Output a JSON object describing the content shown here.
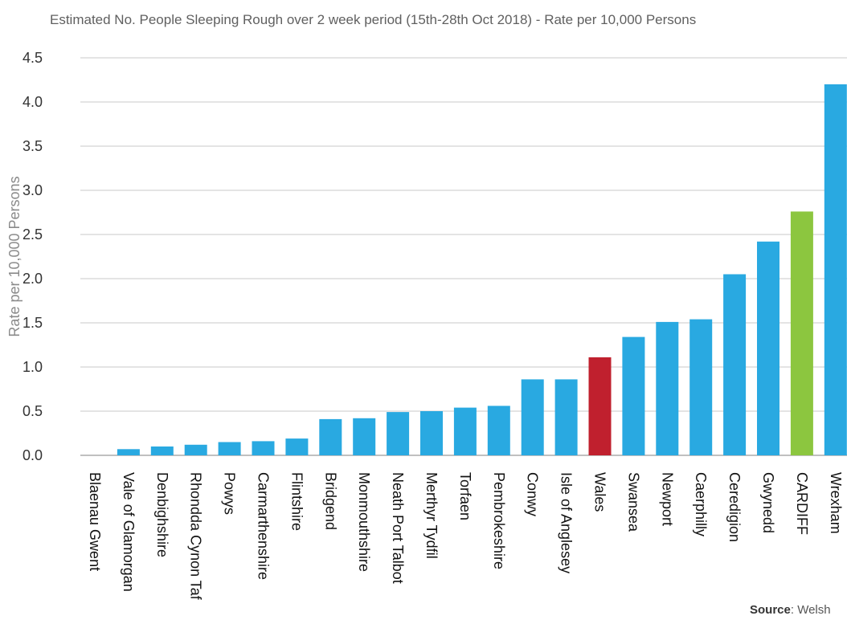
{
  "chart_data": {
    "type": "bar",
    "title": "Estimated No. People Sleeping Rough over 2 week period (15th-28th Oct 2018) - Rate per 10,000 Persons",
    "xlabel": "",
    "ylabel": "Rate per 10,000 Persons",
    "ylim": [
      0,
      4.5
    ],
    "yticks": [
      "0.0",
      "0.5",
      "1.0",
      "1.5",
      "2.0",
      "2.5",
      "3.0",
      "3.5",
      "4.0",
      "4.5"
    ],
    "grid": true,
    "categories": [
      "Blaenau Gwent",
      "Vale of Glamorgan",
      "Denbighshire",
      "Rhondda Cynon Taf",
      "Powys",
      "Carmarthenshire",
      "Flintshire",
      "Bridgend",
      "Monmouthshire",
      "Neath Port Talbot",
      "Merthyr Tydfil",
      "Torfaen",
      "Pembrokeshire",
      "Conwy",
      "Isle of Anglesey",
      "Wales",
      "Swansea",
      "Newport",
      "Caerphilly",
      "Ceredigion",
      "Gwynedd",
      "CARDIFF",
      "Wrexham"
    ],
    "values": [
      0.0,
      0.07,
      0.1,
      0.12,
      0.15,
      0.16,
      0.19,
      0.41,
      0.42,
      0.49,
      0.5,
      0.54,
      0.56,
      0.86,
      0.86,
      1.11,
      1.34,
      1.51,
      1.54,
      2.05,
      2.42,
      2.76,
      4.2
    ],
    "colors": [
      "#29a9e1",
      "#29a9e1",
      "#29a9e1",
      "#29a9e1",
      "#29a9e1",
      "#29a9e1",
      "#29a9e1",
      "#29a9e1",
      "#29a9e1",
      "#29a9e1",
      "#29a9e1",
      "#29a9e1",
      "#29a9e1",
      "#29a9e1",
      "#29a9e1",
      "#c0202e",
      "#29a9e1",
      "#29a9e1",
      "#29a9e1",
      "#29a9e1",
      "#29a9e1",
      "#8cc63f",
      "#29a9e1"
    ],
    "source_label": "Source",
    "source_text": ": Welsh"
  }
}
